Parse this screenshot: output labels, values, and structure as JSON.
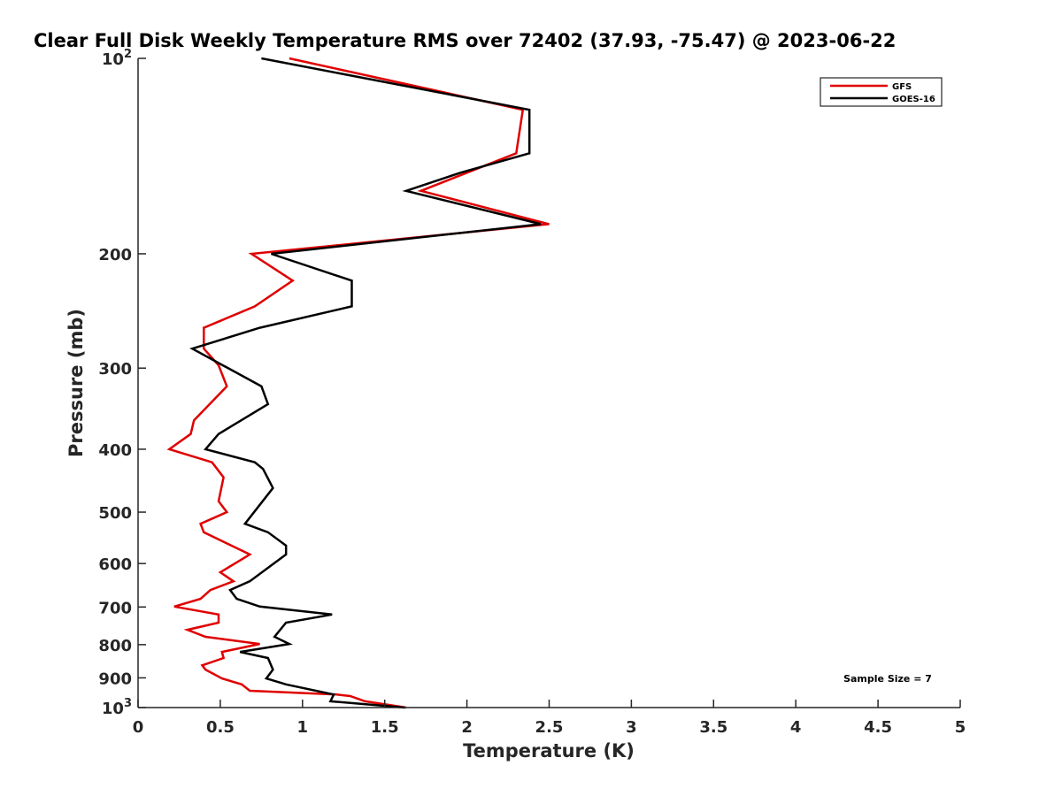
{
  "chart_data": {
    "type": "line",
    "title": "Clear Full Disk Weekly Temperature RMS over 72402 (37.93, -75.47) @ 2023-06-22",
    "xlabel": "Temperature (K)",
    "ylabel": "Pressure (mb)",
    "xlim": [
      0,
      5
    ],
    "ylim": [
      100,
      1000
    ],
    "yscale": "log",
    "yreversed": true,
    "xticks": [
      "0",
      "0.5",
      "1",
      "1.5",
      "2",
      "2.5",
      "3",
      "3.5",
      "4",
      "4.5",
      "5"
    ],
    "xtick_values": [
      0,
      0.5,
      1,
      1.5,
      2,
      2.5,
      3,
      3.5,
      4,
      4.5,
      5
    ],
    "yticks": [
      {
        "value": 100,
        "base": "10",
        "exp": "2"
      },
      {
        "value": 200,
        "label": "200"
      },
      {
        "value": 300,
        "label": "300"
      },
      {
        "value": 400,
        "label": "400"
      },
      {
        "value": 500,
        "label": "500"
      },
      {
        "value": 600,
        "label": "600"
      },
      {
        "value": 700,
        "label": "700"
      },
      {
        "value": 800,
        "label": "800"
      },
      {
        "value": 900,
        "label": "900"
      },
      {
        "value": 1000,
        "base": "10",
        "exp": "3"
      }
    ],
    "legend_position": "top-right",
    "annotation": "Sample Size = 7",
    "series": [
      {
        "name": "GFS",
        "color": "#e00000",
        "pressure": [
          100,
          120,
          140,
          160,
          180,
          200,
          220,
          241,
          260,
          280,
          297,
          320,
          361,
          379,
          400,
          419,
          442,
          481,
          500,
          521,
          537,
          581,
          619,
          639,
          659,
          680,
          699,
          719,
          740,
          759,
          778,
          798,
          821,
          839,
          861,
          874,
          902,
          921,
          942,
          955,
          960,
          978,
          1000
        ],
        "temperature": [
          0.92,
          2.34,
          2.3,
          1.72,
          2.5,
          0.69,
          0.94,
          0.71,
          0.4,
          0.4,
          0.49,
          0.54,
          0.34,
          0.32,
          0.19,
          0.45,
          0.52,
          0.49,
          0.54,
          0.38,
          0.4,
          0.68,
          0.5,
          0.58,
          0.44,
          0.38,
          0.22,
          0.49,
          0.49,
          0.3,
          0.41,
          0.74,
          0.51,
          0.52,
          0.39,
          0.41,
          0.51,
          0.63,
          0.68,
          1.21,
          1.29,
          1.38,
          1.63
        ]
      },
      {
        "name": "GOES-16",
        "color": "#000000",
        "pressure": [
          100,
          120,
          140,
          150,
          160,
          180,
          200,
          220,
          241,
          260,
          280,
          320,
          341,
          379,
          400,
          419,
          429,
          459,
          521,
          537,
          563,
          581,
          639,
          659,
          680,
          699,
          719,
          740,
          778,
          798,
          821,
          839,
          874,
          902,
          921,
          955,
          978,
          1000
        ],
        "temperature": [
          0.75,
          2.38,
          2.38,
          1.96,
          1.63,
          2.45,
          0.81,
          1.3,
          1.3,
          0.74,
          0.33,
          0.75,
          0.79,
          0.49,
          0.41,
          0.71,
          0.76,
          0.82,
          0.65,
          0.79,
          0.9,
          0.9,
          0.68,
          0.56,
          0.6,
          0.74,
          1.18,
          0.9,
          0.83,
          0.92,
          0.62,
          0.79,
          0.82,
          0.78,
          0.9,
          1.19,
          1.17,
          1.62
        ]
      }
    ]
  }
}
